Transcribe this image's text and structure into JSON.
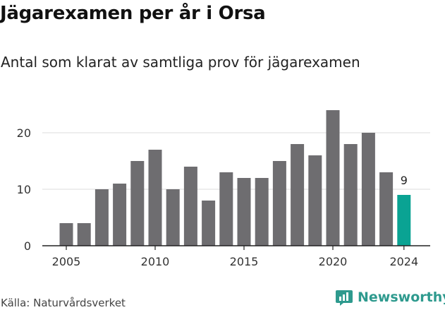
{
  "header": {
    "title": "Jägarexamen per år i Orsa",
    "subtitle": "Antal som klarat av samtliga prov för jägarexamen"
  },
  "footer": {
    "source": "Källa: Naturvårdsverket",
    "brand": "Newsworthy",
    "brand_icon": "newsworthy-logo-icon"
  },
  "colors": {
    "bar": "#6e6d70",
    "highlight": "#0aa393",
    "grid": "#dcdcdc",
    "axis": "#222222",
    "brand": "#2e9a8e"
  },
  "chart_data": {
    "type": "bar",
    "title": "Jägarexamen per år i Orsa",
    "subtitle": "Antal som klarat av samtliga prov för jägarexamen",
    "xlabel": "",
    "ylabel": "",
    "x": [
      2005,
      2006,
      2007,
      2008,
      2009,
      2010,
      2011,
      2012,
      2013,
      2014,
      2015,
      2016,
      2017,
      2018,
      2019,
      2020,
      2021,
      2022,
      2023,
      2024
    ],
    "values": [
      4,
      4,
      10,
      11,
      15,
      17,
      10,
      14,
      8,
      13,
      12,
      12,
      15,
      18,
      16,
      24,
      18,
      20,
      13,
      9
    ],
    "highlight_index": 19,
    "highlight_label": "9",
    "ylim": [
      0,
      24
    ],
    "yticks": [
      0,
      10,
      20
    ],
    "xticks": [
      2005,
      2010,
      2015,
      2020,
      2024
    ],
    "grid": true,
    "legend": "none"
  }
}
